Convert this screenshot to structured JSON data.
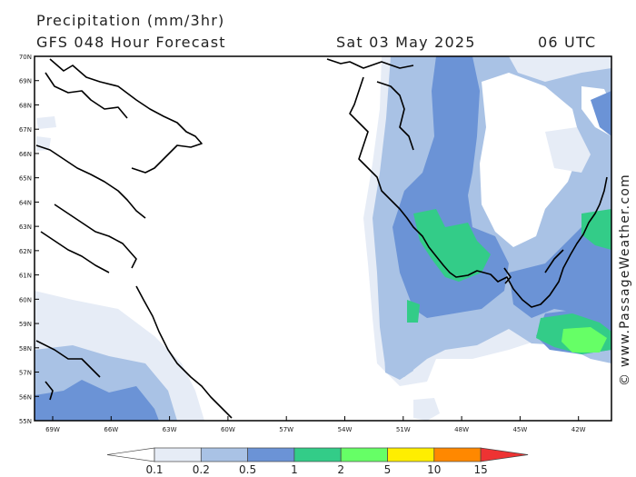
{
  "header": {
    "title": "Precipitation (mm/3hr)",
    "subtitle": "GFS 048 Hour Forecast",
    "date": "Sat 03 May 2025",
    "time": "06 UTC"
  },
  "credit": "© www.PassageWeather.com",
  "axes": {
    "lat_labels": [
      "70N",
      "69N",
      "68N",
      "67N",
      "66N",
      "65N",
      "64N",
      "63N",
      "62N",
      "61N",
      "60N",
      "59N",
      "58N",
      "57N",
      "56N",
      "55N"
    ],
    "lon_labels": [
      "69W",
      "66W",
      "63W",
      "60W",
      "57W",
      "54W",
      "51W",
      "48W",
      "45W",
      "42W"
    ]
  },
  "legend": {
    "ticks": [
      "0.1",
      "0.2",
      "0.5",
      "1",
      "2",
      "5",
      "10",
      "15"
    ],
    "colors": [
      "#ffffff",
      "#e6ecf6",
      "#a9c2e5",
      "#6b93d6",
      "#33cc88",
      "#66ff66",
      "#ffee00",
      "#ff8800",
      "#ee3333"
    ]
  }
}
